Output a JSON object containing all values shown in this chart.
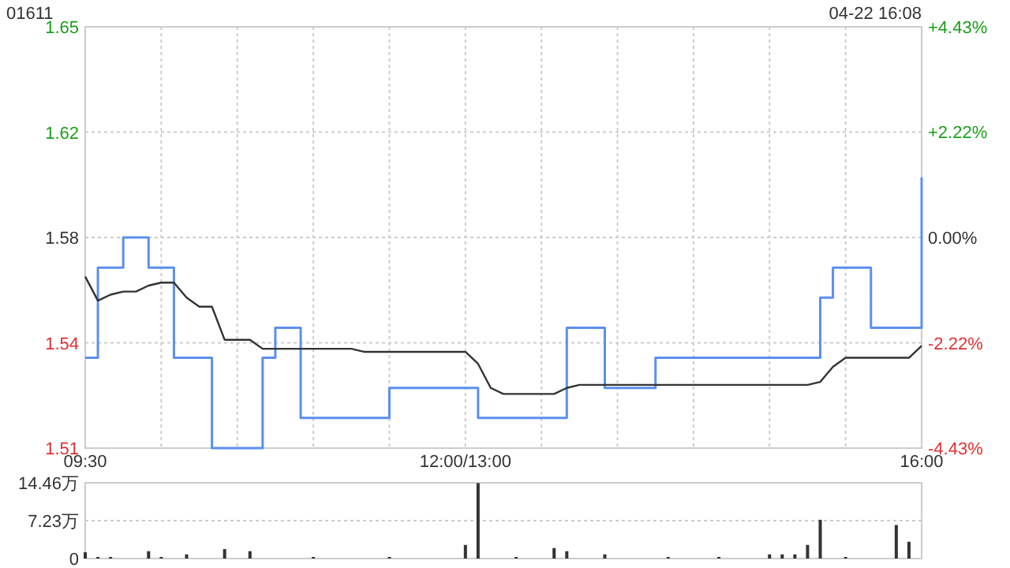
{
  "chart_data": [
    {
      "type": "line",
      "title": "01611",
      "subtitle": "04-22 16:08",
      "grid": true,
      "categories": [
        "09:30",
        null,
        null,
        null,
        null,
        null,
        null,
        null,
        null,
        null,
        null,
        null,
        null,
        null,
        null,
        null,
        null,
        null,
        null,
        null,
        null,
        null,
        null,
        null,
        null,
        null,
        null,
        null,
        null,
        null,
        "12:00/13:00",
        null,
        null,
        null,
        null,
        null,
        null,
        null,
        null,
        null,
        null,
        null,
        null,
        null,
        null,
        null,
        null,
        null,
        null,
        null,
        null,
        null,
        null,
        null,
        null,
        null,
        null,
        null,
        null,
        null,
        null,
        null,
        null,
        null,
        null,
        null,
        "16:00"
      ],
      "ylim": [
        1.51,
        1.65
      ],
      "yticks": [
        1.51,
        {
          "value": 1.545,
          "label": "1.54"
        },
        1.58,
        {
          "value": 1.615,
          "label": "1.62"
        },
        1.65
      ],
      "y2lim": [
        -4.43,
        4.43
      ],
      "y2ticks": [
        {
          "value": -4.43,
          "label": "-4.43%"
        },
        {
          "value": -2.22,
          "label": "-2.22%"
        },
        {
          "value": 0,
          "label": "0.00%"
        },
        {
          "value": 2.22,
          "label": "+2.22%"
        },
        {
          "value": 4.43,
          "label": "+4.43%"
        }
      ],
      "series": [
        {
          "type": "step",
          "color": "#5b8ff0",
          "values": [
            1.54,
            1.57,
            1.57,
            1.58,
            1.58,
            1.57,
            1.57,
            1.54,
            1.54,
            1.54,
            1.51,
            1.51,
            1.51,
            1.51,
            1.54,
            1.55,
            1.55,
            1.52,
            1.52,
            1.52,
            1.52,
            1.52,
            1.52,
            1.52,
            1.53,
            1.53,
            1.53,
            1.53,
            1.53,
            1.53,
            1.53,
            1.52,
            1.52,
            1.52,
            1.52,
            1.52,
            1.52,
            1.52,
            1.55,
            1.55,
            1.55,
            1.53,
            1.53,
            1.53,
            1.53,
            1.54,
            1.54,
            1.54,
            1.54,
            1.54,
            1.54,
            1.54,
            1.54,
            1.54,
            1.54,
            1.54,
            1.54,
            1.54,
            1.56,
            1.57,
            1.57,
            1.57,
            1.55,
            1.55,
            1.55,
            1.55,
            1.6
          ]
        },
        {
          "type": "line",
          "color": "#333333",
          "values": [
            1.567,
            1.559,
            1.561,
            1.562,
            1.562,
            1.564,
            1.565,
            1.565,
            1.56,
            1.557,
            1.557,
            1.546,
            1.546,
            1.546,
            1.543,
            1.543,
            1.543,
            1.543,
            1.543,
            1.543,
            1.543,
            1.543,
            1.542,
            1.542,
            1.542,
            1.542,
            1.542,
            1.542,
            1.542,
            1.542,
            1.542,
            1.538,
            1.53,
            1.528,
            1.528,
            1.528,
            1.528,
            1.528,
            1.53,
            1.531,
            1.531,
            1.531,
            1.531,
            1.531,
            1.531,
            1.531,
            1.531,
            1.531,
            1.531,
            1.531,
            1.531,
            1.531,
            1.531,
            1.531,
            1.531,
            1.531,
            1.531,
            1.531,
            1.532,
            1.537,
            1.54,
            1.54,
            1.54,
            1.54,
            1.54,
            1.54,
            1.544
          ]
        }
      ]
    },
    {
      "type": "bar",
      "grid": "y",
      "tick_labels": "y",
      "categories": [
        null,
        null,
        null,
        null,
        null,
        null,
        null,
        null,
        null,
        null,
        null,
        null,
        null,
        null,
        null,
        null,
        null,
        null,
        null,
        null,
        null,
        null,
        null,
        null,
        null,
        null,
        null,
        null,
        null,
        null,
        null,
        null,
        null,
        null,
        null,
        null,
        null,
        null,
        null,
        null,
        null,
        null,
        null,
        null,
        null,
        null,
        null,
        null,
        null,
        null,
        null,
        null,
        null,
        null,
        null,
        null,
        null,
        null,
        null,
        null,
        null,
        null,
        null,
        null,
        null,
        null,
        null
      ],
      "ylim": [
        0,
        14.46
      ],
      "yticks": [
        0,
        {
          "value": 7.23,
          "label": "7.23万"
        },
        {
          "value": 14.46,
          "label": "14.46万"
        }
      ],
      "series": [
        {
          "color": "#333333",
          "values": [
            1.2,
            0.3,
            0.3,
            null,
            null,
            1.4,
            0.3,
            null,
            0.8,
            null,
            null,
            1.8,
            null,
            1.4,
            null,
            null,
            null,
            null,
            0.3,
            null,
            null,
            null,
            null,
            null,
            0.3,
            null,
            null,
            null,
            null,
            null,
            2.6,
            14.4,
            null,
            null,
            0.3,
            null,
            null,
            2.0,
            1.4,
            null,
            null,
            0.8,
            null,
            null,
            null,
            null,
            0.3,
            null,
            null,
            null,
            0.3,
            null,
            null,
            null,
            0.8,
            0.8,
            0.8,
            2.6,
            7.4,
            null,
            0.3,
            null,
            null,
            null,
            6.4,
            3.2,
            null
          ]
        }
      ]
    }
  ]
}
